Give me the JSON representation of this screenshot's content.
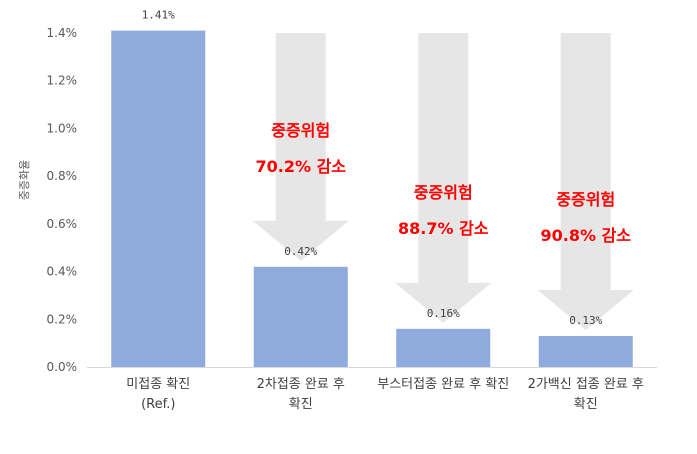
{
  "chart_data": {
    "type": "bar",
    "ylabel": "중증화율",
    "ylim": [
      0,
      1.4
    ],
    "yticks": [
      "0.0%",
      "0.2%",
      "0.4%",
      "0.6%",
      "0.8%",
      "1.0%",
      "1.2%",
      "1.4%"
    ],
    "ytick_values": [
      0,
      0.2,
      0.4,
      0.6,
      0.8,
      1.0,
      1.2,
      1.4
    ],
    "grid": false,
    "categories": [
      [
        "미접종 확진",
        "(Ref.)"
      ],
      [
        "2차접종 완료 후",
        "확진"
      ],
      [
        "부스터접종 완료 후 확진"
      ],
      [
        "2가백신 접종 완료 후",
        "확진"
      ]
    ],
    "values": [
      1.41,
      0.42,
      0.16,
      0.13
    ],
    "value_labels": [
      "1.41%",
      "0.42%",
      "0.16%",
      "0.13%"
    ],
    "annotations": [
      {
        "category_index": 1,
        "line1": "중증위험",
        "line2": "70.2% 감소"
      },
      {
        "category_index": 2,
        "line1": "중증위험",
        "line2": "88.7% 감소"
      },
      {
        "category_index": 3,
        "line1": "중증위험",
        "line2": "90.8% 감소"
      }
    ],
    "colors": {
      "bar": "#8faadc",
      "arrow": "#e7e6e6",
      "annotation": "#ff0000",
      "axis": "#d9d9d9"
    }
  }
}
